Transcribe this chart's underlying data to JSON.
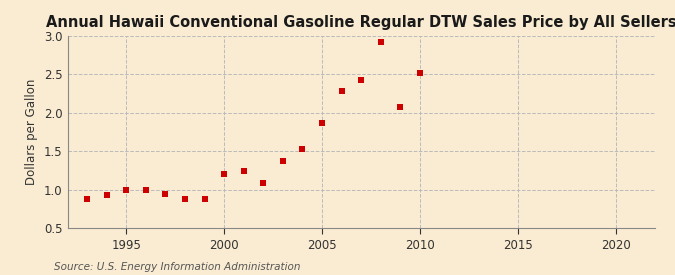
{
  "title": "Annual Hawaii Conventional Gasoline Regular DTW Sales Price by All Sellers",
  "ylabel": "Dollars per Gallon",
  "source": "Source: U.S. Energy Information Administration",
  "background_color": "#faecd2",
  "years": [
    1993,
    1994,
    1995,
    1996,
    1997,
    1998,
    1999,
    2000,
    2001,
    2002,
    2003,
    2004,
    2005,
    2006,
    2007,
    2008,
    2009,
    2010
  ],
  "values": [
    0.88,
    0.93,
    1.0,
    1.0,
    0.94,
    0.88,
    0.88,
    1.21,
    1.25,
    1.09,
    1.37,
    1.53,
    1.87,
    2.28,
    2.42,
    2.92,
    2.07,
    2.52
  ],
  "marker_color": "#cc0000",
  "marker_size": 5,
  "xlim": [
    1992,
    2022
  ],
  "ylim": [
    0.5,
    3.0
  ],
  "xticks": [
    1995,
    2000,
    2005,
    2010,
    2015,
    2020
  ],
  "yticks": [
    0.5,
    1.0,
    1.5,
    2.0,
    2.5,
    3.0
  ],
  "grid_color": "#bbbbbb",
  "title_fontsize": 10.5,
  "label_fontsize": 8.5,
  "tick_fontsize": 8.5,
  "source_fontsize": 7.5
}
